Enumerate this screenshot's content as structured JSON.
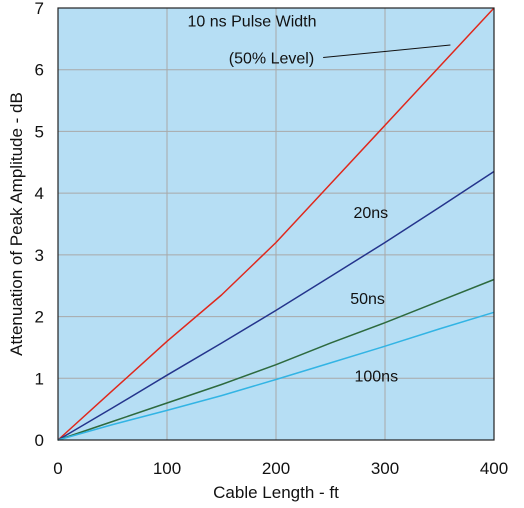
{
  "chart_data": {
    "type": "line",
    "xlabel": "Cable Length - ft",
    "ylabel": "Attenuation of Peak Amplitude - dB",
    "xlim": [
      0,
      400
    ],
    "ylim": [
      0,
      7
    ],
    "x_ticks": [
      0,
      100,
      200,
      300,
      400
    ],
    "y_ticks": [
      0,
      1,
      2,
      3,
      4,
      5,
      6,
      7
    ],
    "grid": true,
    "background_color": "#b6def4",
    "grid_color": "#a8a8a8",
    "series": [
      {
        "name": "",
        "color": "#e0281c",
        "x": [
          0,
          50,
          100,
          150,
          200,
          250,
          300,
          350,
          400
        ],
        "y": [
          0,
          0.8,
          1.6,
          2.35,
          3.2,
          4.15,
          5.1,
          6.05,
          7.0
        ]
      },
      {
        "name": "",
        "color": "#24348c",
        "x": [
          0,
          50,
          100,
          150,
          200,
          250,
          300,
          350,
          400
        ],
        "y": [
          0,
          0.52,
          1.05,
          1.57,
          2.1,
          2.65,
          3.2,
          3.77,
          4.35
        ]
      },
      {
        "name": "",
        "color": "#2d6a3e",
        "x": [
          0,
          50,
          100,
          150,
          200,
          250,
          300,
          350,
          400
        ],
        "y": [
          0,
          0.3,
          0.6,
          0.9,
          1.22,
          1.57,
          1.9,
          2.25,
          2.6
        ]
      },
      {
        "name": "",
        "color": "#32b4e4",
        "x": [
          0,
          50,
          100,
          150,
          200,
          250,
          300,
          350,
          400
        ],
        "y": [
          0,
          0.25,
          0.48,
          0.72,
          0.98,
          1.25,
          1.52,
          1.8,
          2.07
        ]
      }
    ],
    "annotations": [
      {
        "id": "pulse-10",
        "line1": "10 ns Pulse Width",
        "line2": "(50% Level)",
        "x": 235,
        "y": 6.1,
        "line1_x": 178,
        "line1_y": 6.7,
        "leader_to_x": 360,
        "leader_to_y": 6.4
      },
      {
        "id": "pulse-20",
        "text": "20ns",
        "x": 287,
        "y": 3.6
      },
      {
        "id": "pulse-50",
        "text": "50ns",
        "x": 284,
        "y": 2.2
      },
      {
        "id": "pulse-100",
        "text": "100ns",
        "x": 292,
        "y": 0.95
      }
    ]
  }
}
